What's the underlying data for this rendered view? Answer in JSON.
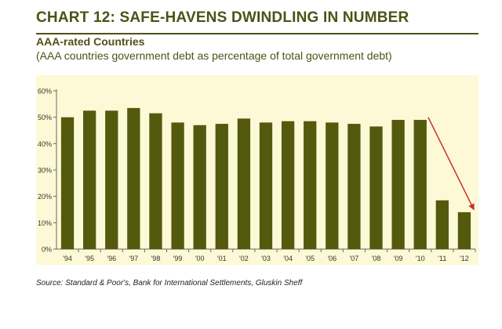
{
  "header": {
    "title": "CHART 12: SAFE-HAVENS DWINDLING IN NUMBER",
    "subtitle": "AAA-rated Countries",
    "description": "(AAA countries government debt as percentage of total government debt)"
  },
  "footer": {
    "source": "Source: Standard & Poor's, Bank for International Settlements, Gluskin Sheff"
  },
  "colors": {
    "bar": "#535a0e",
    "plot_bg": "#fdf9d6",
    "arrow": "#c9302c",
    "axis": "#666666"
  },
  "chart_data": {
    "type": "bar",
    "categories": [
      "'94",
      "'95",
      "'96",
      "'97",
      "'98",
      "'99",
      "'00",
      "'01",
      "'02",
      "'03",
      "'04",
      "'05",
      "'06",
      "'07",
      "'08",
      "'09",
      "'10",
      "'11",
      "'12"
    ],
    "values": [
      50,
      52.5,
      52.5,
      53.5,
      51.5,
      48,
      47,
      47.5,
      49.5,
      48,
      48.5,
      48.5,
      48,
      47.5,
      46.5,
      49,
      49,
      18.5,
      14
    ],
    "ylim": [
      0,
      60
    ],
    "yticks": [
      "0%",
      "10%",
      "20%",
      "30%",
      "40%",
      "50%",
      "60%"
    ],
    "ytick_values": [
      0,
      10,
      20,
      30,
      40,
      50,
      60
    ],
    "annotation": {
      "type": "arrow",
      "from_category": "'10",
      "from_value": 50,
      "to_category": "'12",
      "to_value": 15
    },
    "grid": false
  }
}
